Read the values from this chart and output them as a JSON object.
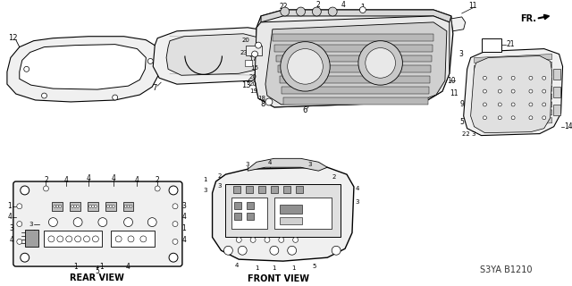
{
  "background_color": "#ffffff",
  "diagram_ref": "S3YA B1210",
  "fr_label": "FR.",
  "labels": {
    "rear_view": "REAR VIEW",
    "front_view": "FRONT VIEW"
  },
  "lc": "#000000",
  "lg": "#f0f0f0",
  "mg": "#c0c0c0",
  "dg": "#808080",
  "hatch_color": "#666666"
}
